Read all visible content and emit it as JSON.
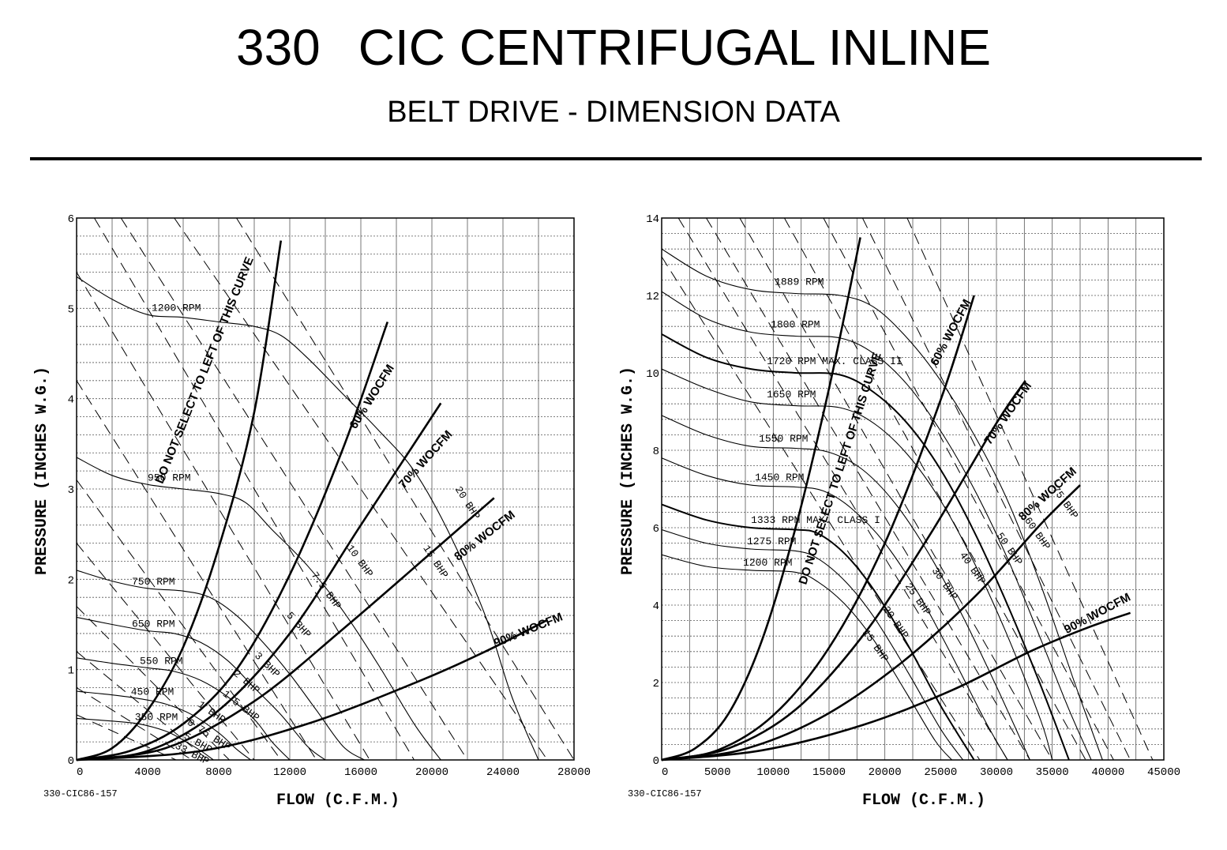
{
  "header": {
    "model": "330",
    "title": "CIC CENTRIFUGAL INLINE",
    "subtitle": "BELT DRIVE - DIMENSION DATA"
  },
  "chart_data": [
    {
      "type": "line",
      "xlabel": "FLOW (C.F.M.)",
      "ylabel": "PRESSURE (INCHES W.G.)",
      "code": "330-CIC86-157",
      "xlim": [
        0,
        28000
      ],
      "ylim": [
        0,
        6
      ],
      "xticks": [
        0,
        4000,
        8000,
        12000,
        16000,
        20000,
        24000,
        28000
      ],
      "xtick_labels": [
        "0",
        "4000",
        "8000",
        "12000",
        "16000",
        "20000",
        "24000",
        "28000"
      ],
      "yticks": [
        0,
        1,
        2,
        3,
        4,
        5,
        6
      ],
      "ytick_labels": [
        "0",
        "1",
        "2",
        "3",
        "4",
        "5",
        "6"
      ],
      "grid": true,
      "warning_label": "DO NOT SELECT TO LEFT OF THIS CURVE",
      "rpm_curves": [
        {
          "name": "1200 RPM",
          "x": [
            0,
            2000,
            4000,
            6000,
            8000,
            10000,
            11500,
            13000,
            15000,
            17000,
            19000,
            21000,
            23000,
            24500,
            26000
          ],
          "y": [
            5.35,
            5.1,
            4.93,
            4.9,
            4.85,
            4.8,
            4.7,
            4.45,
            4.05,
            3.65,
            3.2,
            2.5,
            1.6,
            0.7,
            0
          ]
        },
        {
          "name": "950 RPM",
          "x": [
            0,
            2000,
            4000,
            6000,
            8000,
            9500,
            11000,
            13000,
            15000,
            17000,
            19000,
            20500
          ],
          "y": [
            3.35,
            3.15,
            3.05,
            3.0,
            2.95,
            2.85,
            2.55,
            2.15,
            1.65,
            1.05,
            0.4,
            0
          ]
        },
        {
          "name": "750 RPM",
          "x": [
            0,
            2000,
            4000,
            6000,
            7500,
            9000,
            10500,
            12000,
            13500,
            15000,
            16200
          ],
          "y": [
            2.1,
            1.98,
            1.9,
            1.87,
            1.8,
            1.6,
            1.3,
            0.95,
            0.55,
            0.15,
            0
          ]
        },
        {
          "name": "650 RPM",
          "x": [
            0,
            2000,
            4000,
            5500,
            7000,
            8500,
            10000,
            11500,
            13000,
            14000
          ],
          "y": [
            1.58,
            1.5,
            1.43,
            1.4,
            1.3,
            1.1,
            0.8,
            0.5,
            0.15,
            0
          ]
        },
        {
          "name": "550 RPM",
          "x": [
            0,
            2000,
            4000,
            5500,
            7000,
            8500,
            10000,
            11000,
            12000
          ],
          "y": [
            1.13,
            1.07,
            1.02,
            0.98,
            0.88,
            0.7,
            0.45,
            0.2,
            0
          ]
        },
        {
          "name": "450 RPM",
          "x": [
            0,
            2000,
            3500,
            5000,
            6500,
            8000,
            9000,
            9800
          ],
          "y": [
            0.76,
            0.72,
            0.68,
            0.62,
            0.5,
            0.3,
            0.12,
            0
          ]
        },
        {
          "name": "350 RPM",
          "x": [
            0,
            2000,
            3500,
            5000,
            6000,
            7000,
            7700
          ],
          "y": [
            0.46,
            0.43,
            0.4,
            0.32,
            0.22,
            0.1,
            0
          ]
        }
      ],
      "woc_curves": [
        {
          "name": "DO NOT SELECT TO LEFT OF THIS CURVE",
          "x": [
            0,
            2000,
            4000,
            6000,
            8000,
            10000,
            11500
          ],
          "y": [
            0,
            0.13,
            0.55,
            1.25,
            2.35,
            3.85,
            5.75
          ]
        },
        {
          "name": "60% WOCFM",
          "x": [
            0,
            3000,
            6000,
            9000,
            12000,
            15000,
            17500
          ],
          "y": [
            0,
            0.1,
            0.4,
            1.0,
            2.05,
            3.45,
            4.85
          ]
        },
        {
          "name": "70% WOCFM",
          "x": [
            0,
            4000,
            8000,
            12000,
            16000,
            20500
          ],
          "y": [
            0,
            0.1,
            0.55,
            1.4,
            2.6,
            3.95
          ]
        },
        {
          "name": "80% WOCFM",
          "x": [
            0,
            5000,
            10000,
            15000,
            20000,
            23500
          ],
          "y": [
            0,
            0.13,
            0.65,
            1.45,
            2.3,
            2.9
          ]
        },
        {
          "name": "90% WOCFM",
          "x": [
            0,
            7000,
            13000,
            19000,
            23000,
            26500
          ],
          "y": [
            0,
            0.1,
            0.4,
            0.85,
            1.2,
            1.55
          ]
        }
      ],
      "bhp_labels": [
        "20 BHP",
        "15 BHP",
        "10 BHP",
        "7.5 BHP",
        "5 BHP",
        "3 BHP",
        "2 BHP",
        "1.5 BHP",
        "1 BHP",
        "0.75 BHP",
        ".5 BHP",
        ".33 BHP"
      ]
    },
    {
      "type": "line",
      "xlabel": "FLOW (C.F.M.)",
      "ylabel": "PRESSURE (INCHES W.G.)",
      "code": "330-CIC86-157",
      "xlim": [
        0,
        45000
      ],
      "ylim": [
        0,
        14
      ],
      "xticks": [
        0,
        5000,
        10000,
        15000,
        20000,
        25000,
        30000,
        35000,
        40000,
        45000
      ],
      "xtick_labels": [
        "0",
        "5000",
        "10000",
        "15000",
        "20000",
        "25000",
        "30000",
        "35000",
        "40000",
        "45000"
      ],
      "yticks": [
        0,
        2,
        4,
        6,
        8,
        10,
        12,
        14
      ],
      "ytick_labels": [
        "0",
        "2",
        "4",
        "6",
        "8",
        "10",
        "12",
        "14"
      ],
      "grid": true,
      "warning_label": "DO NOT SELECT TO LEFT OF THIS CURVE",
      "rpm_curves": [
        {
          "name": "1889 RPM",
          "x": [
            0,
            4000,
            8000,
            12000,
            16000,
            19000,
            22000,
            25000,
            28000,
            31000,
            34000,
            37000,
            39500
          ],
          "y": [
            13.2,
            12.5,
            12.15,
            12.05,
            12.0,
            11.7,
            10.9,
            9.8,
            8.4,
            6.7,
            4.5,
            2.0,
            0
          ]
        },
        {
          "name": "1800 RPM",
          "x": [
            0,
            4000,
            8000,
            12000,
            16000,
            19000,
            22000,
            25000,
            28000,
            31000,
            34000,
            36500,
            38500
          ],
          "y": [
            12.1,
            11.4,
            11.05,
            10.95,
            10.9,
            10.5,
            9.7,
            8.5,
            7.0,
            5.2,
            3.1,
            1.3,
            0
          ]
        },
        {
          "name": "1720 RPM MAX. CLASS II",
          "x": [
            0,
            4000,
            8000,
            12000,
            16000,
            19000,
            22000,
            25000,
            28000,
            31000,
            34000,
            36500
          ],
          "y": [
            11.0,
            10.4,
            10.1,
            10.0,
            9.95,
            9.5,
            8.7,
            7.5,
            5.9,
            4.0,
            1.9,
            0
          ]
        },
        {
          "name": "1650 RPM",
          "x": [
            0,
            4000,
            8000,
            12000,
            16000,
            19000,
            22000,
            25000,
            28000,
            31000,
            34000,
            35000
          ],
          "y": [
            10.1,
            9.6,
            9.25,
            9.15,
            9.1,
            8.7,
            7.9,
            6.7,
            5.1,
            3.2,
            1.0,
            0
          ]
        },
        {
          "name": "1550 RPM",
          "x": [
            0,
            4000,
            8000,
            12000,
            15000,
            18000,
            21000,
            24000,
            27000,
            30000,
            33000
          ],
          "y": [
            8.9,
            8.4,
            8.1,
            8.05,
            7.95,
            7.5,
            6.6,
            5.3,
            3.7,
            1.9,
            0
          ]
        },
        {
          "name": "1450 RPM",
          "x": [
            0,
            4000,
            8000,
            12000,
            14500,
            17000,
            20000,
            23000,
            26000,
            29000,
            31000
          ],
          "y": [
            7.8,
            7.35,
            7.1,
            7.05,
            6.95,
            6.5,
            5.6,
            4.3,
            2.7,
            1.0,
            0
          ]
        },
        {
          "name": "1333 RPM MAX. CLASS I",
          "x": [
            0,
            4000,
            8000,
            12000,
            14000,
            16500,
            19000,
            22000,
            25000,
            28000
          ],
          "y": [
            6.6,
            6.2,
            6.0,
            5.95,
            5.85,
            5.3,
            4.4,
            3.0,
            1.4,
            0
          ]
        },
        {
          "name": "1275 RPM",
          "x": [
            0,
            4000,
            8000,
            12000,
            14000,
            16500,
            19000,
            22000,
            25000,
            27000
          ],
          "y": [
            5.95,
            5.6,
            5.45,
            5.4,
            5.2,
            4.6,
            3.7,
            2.3,
            0.8,
            0
          ]
        },
        {
          "name": "1200 RPM",
          "x": [
            0,
            4000,
            8000,
            12000,
            14000,
            16500,
            19000,
            22000,
            24500,
            26000
          ],
          "y": [
            5.3,
            5.0,
            4.9,
            4.85,
            4.6,
            4.0,
            3.1,
            1.7,
            0.5,
            0
          ]
        }
      ],
      "woc_curves": [
        {
          "name": "DO NOT SELECT TO LEFT OF THIS CURVE",
          "x": [
            0,
            3000,
            6000,
            9000,
            12000,
            15000,
            17800
          ],
          "y": [
            0,
            0.3,
            1.2,
            3.1,
            6.0,
            9.6,
            13.5
          ]
        },
        {
          "name": "60% WOCFM",
          "x": [
            0,
            5000,
            10000,
            15000,
            20000,
            25000,
            28000
          ],
          "y": [
            0,
            0.25,
            1.15,
            2.9,
            5.6,
            9.3,
            12.0
          ]
        },
        {
          "name": "70% WOCFM",
          "x": [
            0,
            6000,
            12000,
            18000,
            24000,
            30000,
            32600
          ],
          "y": [
            0,
            0.3,
            1.3,
            3.2,
            5.8,
            8.7,
            9.8
          ]
        },
        {
          "name": "80% WOCFM",
          "x": [
            0,
            7000,
            14000,
            21000,
            28000,
            34000,
            37500
          ],
          "y": [
            0,
            0.25,
            1.05,
            2.4,
            4.2,
            6.1,
            7.1
          ]
        },
        {
          "name": "90% WOCFM",
          "x": [
            0,
            9000,
            18000,
            26000,
            33000,
            38000,
            42000
          ],
          "y": [
            0,
            0.25,
            0.9,
            1.8,
            2.8,
            3.4,
            3.8
          ]
        }
      ],
      "bhp_labels": [
        "75 BHP",
        "60 BHP",
        "50 BHP",
        "40 BHP",
        "30 BHP",
        "25 BHP",
        "20 BHP",
        "15 BHP"
      ]
    }
  ]
}
